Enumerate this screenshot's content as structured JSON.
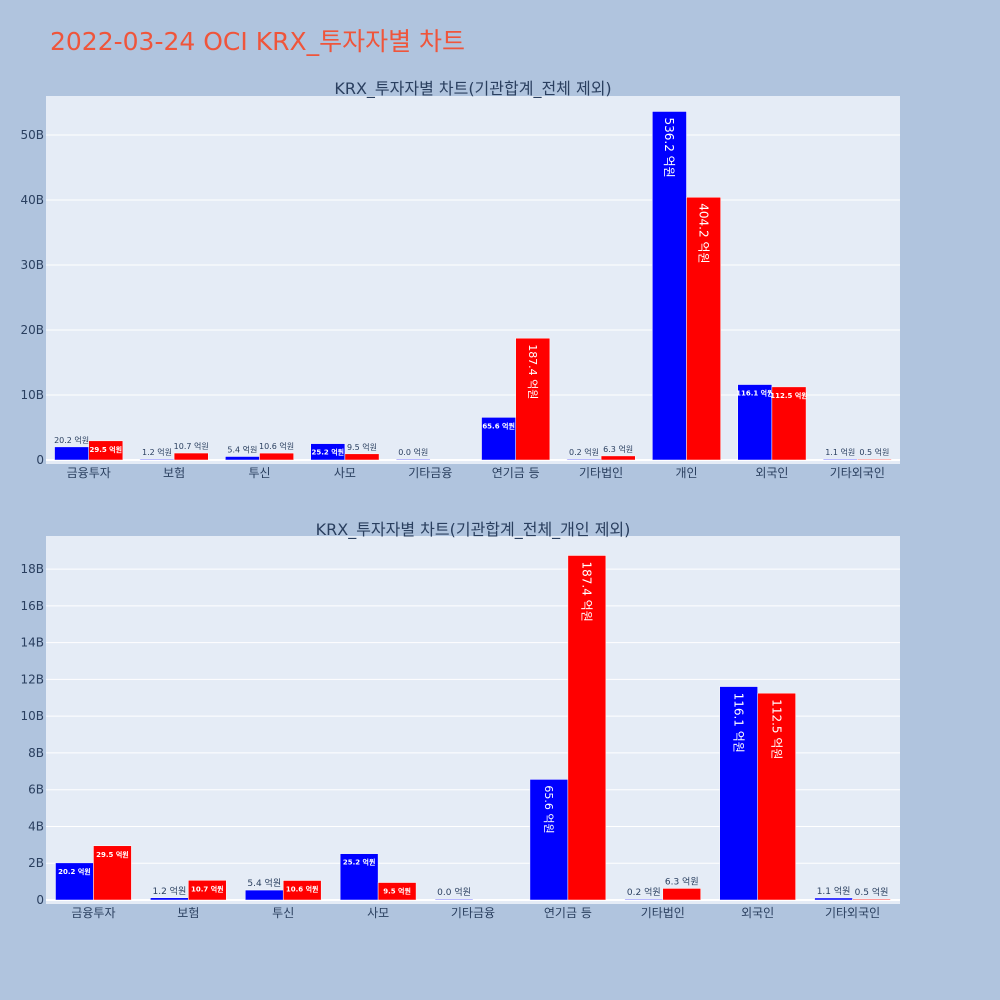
{
  "page_title": "2022-03-24 OCI KRX_투자자별 차트",
  "colors": {
    "buy": "#0000ff",
    "sell": "#ff0000",
    "plot_bg": "#e5ecf6",
    "page_bg": "#b0c4de",
    "title": "#ef553b"
  },
  "chart_data": [
    {
      "type": "bar",
      "title": "KRX_투자자별 차트(기관합계_전체 제외)",
      "categories": [
        "금융투자",
        "보험",
        "투신",
        "사모",
        "기타금융",
        "연기금 등",
        "기타법인",
        "개인",
        "외국인",
        "기타외국인"
      ],
      "series": [
        {
          "values": [
            2.02,
            0.12,
            0.54,
            2.52,
            0.0,
            6.56,
            0.02,
            53.62,
            11.61,
            0.11
          ],
          "labels": [
            "20.2 억원",
            "1.2 억원",
            "5.4 억원",
            "25.2 억원",
            "0.0 억원",
            "65.6 억원",
            "0.2 억원",
            "536.2 억원",
            "116.1 억원",
            "1.1 억원"
          ]
        },
        {
          "values": [
            2.95,
            1.07,
            1.06,
            0.95,
            null,
            18.74,
            0.63,
            40.42,
            11.25,
            0.05
          ],
          "labels": [
            "29.5 억원",
            "10.7 억원",
            "10.6 억원",
            "9.5 억원",
            "",
            "187.4 억원",
            "6.3 억원",
            "404.2 억원",
            "112.5 억원",
            "0.5 억원"
          ]
        }
      ],
      "yticks": [
        "0",
        "10B",
        "20B",
        "30B",
        "40B",
        "50B"
      ],
      "ylim": [
        0,
        56
      ],
      "grid": true
    },
    {
      "type": "bar",
      "title": "KRX_투자자별 차트(기관합계_전체_개인 제외)",
      "categories": [
        "금융투자",
        "보험",
        "투신",
        "사모",
        "기타금융",
        "연기금 등",
        "기타법인",
        "외국인",
        "기타외국인"
      ],
      "series": [
        {
          "values": [
            2.02,
            0.12,
            0.54,
            2.52,
            0.0,
            6.56,
            0.02,
            11.61,
            0.11
          ],
          "labels": [
            "20.2 억원",
            "1.2 억원",
            "5.4 억원",
            "25.2 억원",
            "0.0 억원",
            "65.6 억원",
            "0.2 억원",
            "116.1 억원",
            "1.1 억원"
          ]
        },
        {
          "values": [
            2.95,
            1.07,
            1.06,
            0.95,
            null,
            18.74,
            0.63,
            11.25,
            0.05
          ],
          "labels": [
            "29.5 억원",
            "10.7 억원",
            "10.6 억원",
            "9.5 억원",
            "",
            "187.4 억원",
            "6.3 억원",
            "112.5 억원",
            "0.5 억원"
          ]
        }
      ],
      "yticks": [
        "0",
        "2B",
        "4B",
        "6B",
        "8B",
        "10B",
        "12B",
        "14B",
        "16B",
        "18B"
      ],
      "ylim": [
        0,
        19.8
      ],
      "grid": true
    }
  ]
}
